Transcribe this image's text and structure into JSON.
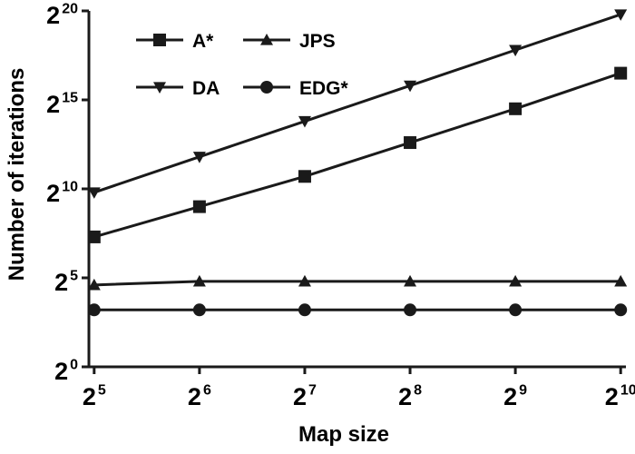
{
  "chart_data": {
    "type": "line",
    "xlabel": "Map size",
    "ylabel": "Number of iterations",
    "x_scale": "log2",
    "y_scale": "log2",
    "x": [
      32,
      64,
      128,
      256,
      512,
      1024
    ],
    "x_tick_labels": [
      {
        "base": "2",
        "exp": "5"
      },
      {
        "base": "2",
        "exp": "6"
      },
      {
        "base": "2",
        "exp": "7"
      },
      {
        "base": "2",
        "exp": "8"
      },
      {
        "base": "2",
        "exp": "9"
      },
      {
        "base": "2",
        "exp": "10"
      }
    ],
    "y_tick_labels": [
      {
        "base": "2",
        "exp": "0"
      },
      {
        "base": "2",
        "exp": "5"
      },
      {
        "base": "2",
        "exp": "10"
      },
      {
        "base": "2",
        "exp": "15"
      },
      {
        "base": "2",
        "exp": "20"
      }
    ],
    "y_ticks_exponent": [
      0,
      5,
      10,
      15,
      20
    ],
    "xlim_exponent": [
      4.95,
      10.05
    ],
    "ylim_exponent": [
      0,
      20
    ],
    "grid": false,
    "legend_position": "top-left",
    "series": [
      {
        "name": "A*",
        "marker": "square",
        "y_exponent": [
          7.3,
          9.0,
          10.7,
          12.6,
          14.5,
          16.5
        ]
      },
      {
        "name": "JPS",
        "marker": "triangle-up",
        "y_exponent": [
          4.6,
          4.8,
          4.8,
          4.8,
          4.8,
          4.8
        ]
      },
      {
        "name": "DA",
        "marker": "triangle-down",
        "y_exponent": [
          9.8,
          11.8,
          13.8,
          15.8,
          17.8,
          19.8
        ]
      },
      {
        "name": "EDG*",
        "marker": "circle",
        "y_exponent": [
          3.2,
          3.2,
          3.2,
          3.2,
          3.2,
          3.2
        ]
      }
    ],
    "colors": {
      "line": "#1a1a1a",
      "marker": "#1a1a1a"
    }
  }
}
